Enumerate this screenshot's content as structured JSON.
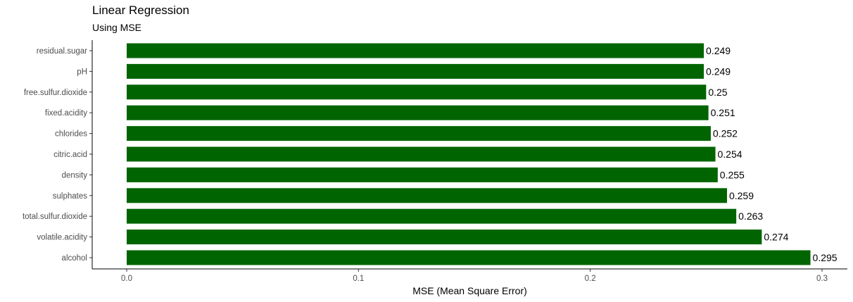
{
  "chart_data": {
    "type": "bar",
    "orientation": "horizontal",
    "title": "Linear Regression",
    "subtitle": "Using MSE",
    "xlabel": "MSE (Mean Square Error)",
    "ylabel": "",
    "xlim": [
      0,
      0.3
    ],
    "x_ticks": [
      "0.0",
      "0.1",
      "0.2",
      "0.3"
    ],
    "x_tick_values": [
      0,
      0.1,
      0.2,
      0.3
    ],
    "grid": false,
    "bar_color": "#006400",
    "categories": [
      "residual.sugar",
      "pH",
      "free.sulfur.dioxide",
      "fixed.acidity",
      "chlorides",
      "citric.acid",
      "density",
      "sulphates",
      "total.sulfur.dioxide",
      "volatile.acidity",
      "alcohol"
    ],
    "values": [
      0.249,
      0.249,
      0.25,
      0.251,
      0.252,
      0.254,
      0.255,
      0.259,
      0.263,
      0.274,
      0.295
    ],
    "value_labels": [
      "0.249",
      "0.249",
      "0.25",
      "0.251",
      "0.252",
      "0.254",
      "0.255",
      "0.259",
      "0.263",
      "0.274",
      "0.295"
    ]
  }
}
